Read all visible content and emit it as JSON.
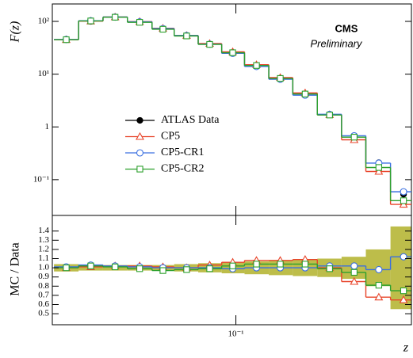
{
  "chart_data": [
    {
      "type": "step-markers",
      "ylabel": "F(z)",
      "annotation": "CMS",
      "subannotation": "Preliminary",
      "log_x": true,
      "log_y": true,
      "xlim": [
        0.009,
        1
      ],
      "ylim": [
        0.021,
        214
      ],
      "xticks": [
        {
          "value": 0.1,
          "label": "10⁻¹"
        }
      ],
      "yticks": [
        {
          "value": 0.1,
          "label": "10⁻¹"
        },
        1,
        {
          "value": 10,
          "label": "10¹"
        },
        {
          "value": 100,
          "label": "10²"
        }
      ],
      "x": [
        0.0108,
        0.0149,
        0.0205,
        0.0283,
        0.0384,
        0.0524,
        0.0709,
        0.0959,
        0.131,
        0.179,
        0.248,
        0.342,
        0.472,
        0.652,
        0.902
      ],
      "bins": [
        0.0092,
        0.0127,
        0.0175,
        0.0241,
        0.0333,
        0.0445,
        0.061,
        0.083,
        0.112,
        0.154,
        0.211,
        0.291,
        0.4,
        0.55,
        0.76,
        1.0
      ],
      "series": [
        {
          "name": "ATLAS Data",
          "color": "#000000",
          "marker": "filled-circle",
          "step": false,
          "values": [
            45,
            100,
            119,
            97,
            73,
            54,
            37,
            25,
            14,
            8.0,
            4.0,
            1.7,
            0.67,
            0.21,
            0.053
          ],
          "errors": [
            1,
            2,
            2,
            2,
            1.5,
            1.2,
            1,
            0.8,
            0.6,
            0.4,
            0.2,
            0.1,
            0.06,
            0.03,
            0.015
          ]
        },
        {
          "name": "CP5",
          "color": "#e8442a",
          "marker": "triangle",
          "step": true,
          "values": [
            45,
            101,
            121,
            99,
            74,
            54,
            38,
            26.5,
            15.1,
            8.6,
            4.4,
            1.7,
            0.57,
            0.143,
            0.034
          ]
        },
        {
          "name": "CP5-CR1",
          "color": "#3a6fe0",
          "marker": "circle",
          "step": true,
          "values": [
            45.5,
            103,
            121,
            98,
            73,
            54,
            37,
            24.8,
            14,
            8.0,
            4.0,
            1.73,
            0.68,
            0.206,
            0.059
          ]
        },
        {
          "name": "CP5-CR2",
          "color": "#2ca02c",
          "marker": "square",
          "step": true,
          "values": [
            45,
            102,
            120,
            96,
            71,
            53,
            36.6,
            25.5,
            14.6,
            8.3,
            4.2,
            1.68,
            0.64,
            0.17,
            0.04
          ]
        }
      ],
      "legend": "left"
    },
    {
      "type": "ratio",
      "ylabel": "MC / Data",
      "xlabel": "z",
      "log_x": true,
      "xlim": [
        0.009,
        1
      ],
      "ylim": [
        0.38,
        1.57
      ],
      "xticks": [
        {
          "value": 0.1,
          "label": "10⁻¹"
        }
      ],
      "yticks": [
        0.5,
        0.6,
        0.7,
        0.8,
        0.9,
        {
          "value": 1,
          "label": "1.0"
        },
        1.1,
        1.2,
        1.3,
        1.4
      ],
      "x": [
        0.0108,
        0.0149,
        0.0205,
        0.0283,
        0.0384,
        0.0524,
        0.0709,
        0.0959,
        0.131,
        0.179,
        0.248,
        0.342,
        0.472,
        0.652,
        0.902
      ],
      "bins": [
        0.0092,
        0.0127,
        0.0175,
        0.0241,
        0.0333,
        0.0445,
        0.061,
        0.083,
        0.112,
        0.154,
        0.211,
        0.291,
        0.4,
        0.55,
        0.76,
        1.0
      ],
      "band_color": "#bdbd4a",
      "band_low": [
        0.96,
        0.97,
        0.97,
        0.97,
        0.97,
        0.96,
        0.95,
        0.94,
        0.93,
        0.92,
        0.91,
        0.9,
        0.88,
        0.8,
        0.55
      ],
      "band_high": [
        1.04,
        1.03,
        1.03,
        1.03,
        1.03,
        1.04,
        1.05,
        1.06,
        1.07,
        1.08,
        1.09,
        1.1,
        1.12,
        1.2,
        1.45
      ],
      "series": [
        {
          "color": "#e8442a",
          "marker": "triangle",
          "values": [
            1.0,
            1.01,
            1.02,
            1.02,
            1.01,
            1.0,
            1.03,
            1.06,
            1.08,
            1.08,
            1.09,
            1.0,
            0.85,
            0.68,
            0.65
          ]
        },
        {
          "color": "#3a6fe0",
          "marker": "circle",
          "values": [
            1.01,
            1.03,
            1.02,
            1.01,
            1.0,
            1.0,
            1.0,
            0.99,
            1.0,
            1.0,
            1.0,
            1.02,
            1.02,
            0.98,
            1.12
          ]
        },
        {
          "color": "#2ca02c",
          "marker": "square",
          "values": [
            1.0,
            1.02,
            1.01,
            0.99,
            0.97,
            0.98,
            0.99,
            1.02,
            1.04,
            1.04,
            1.04,
            0.99,
            0.95,
            0.81,
            0.75
          ]
        }
      ]
    }
  ]
}
